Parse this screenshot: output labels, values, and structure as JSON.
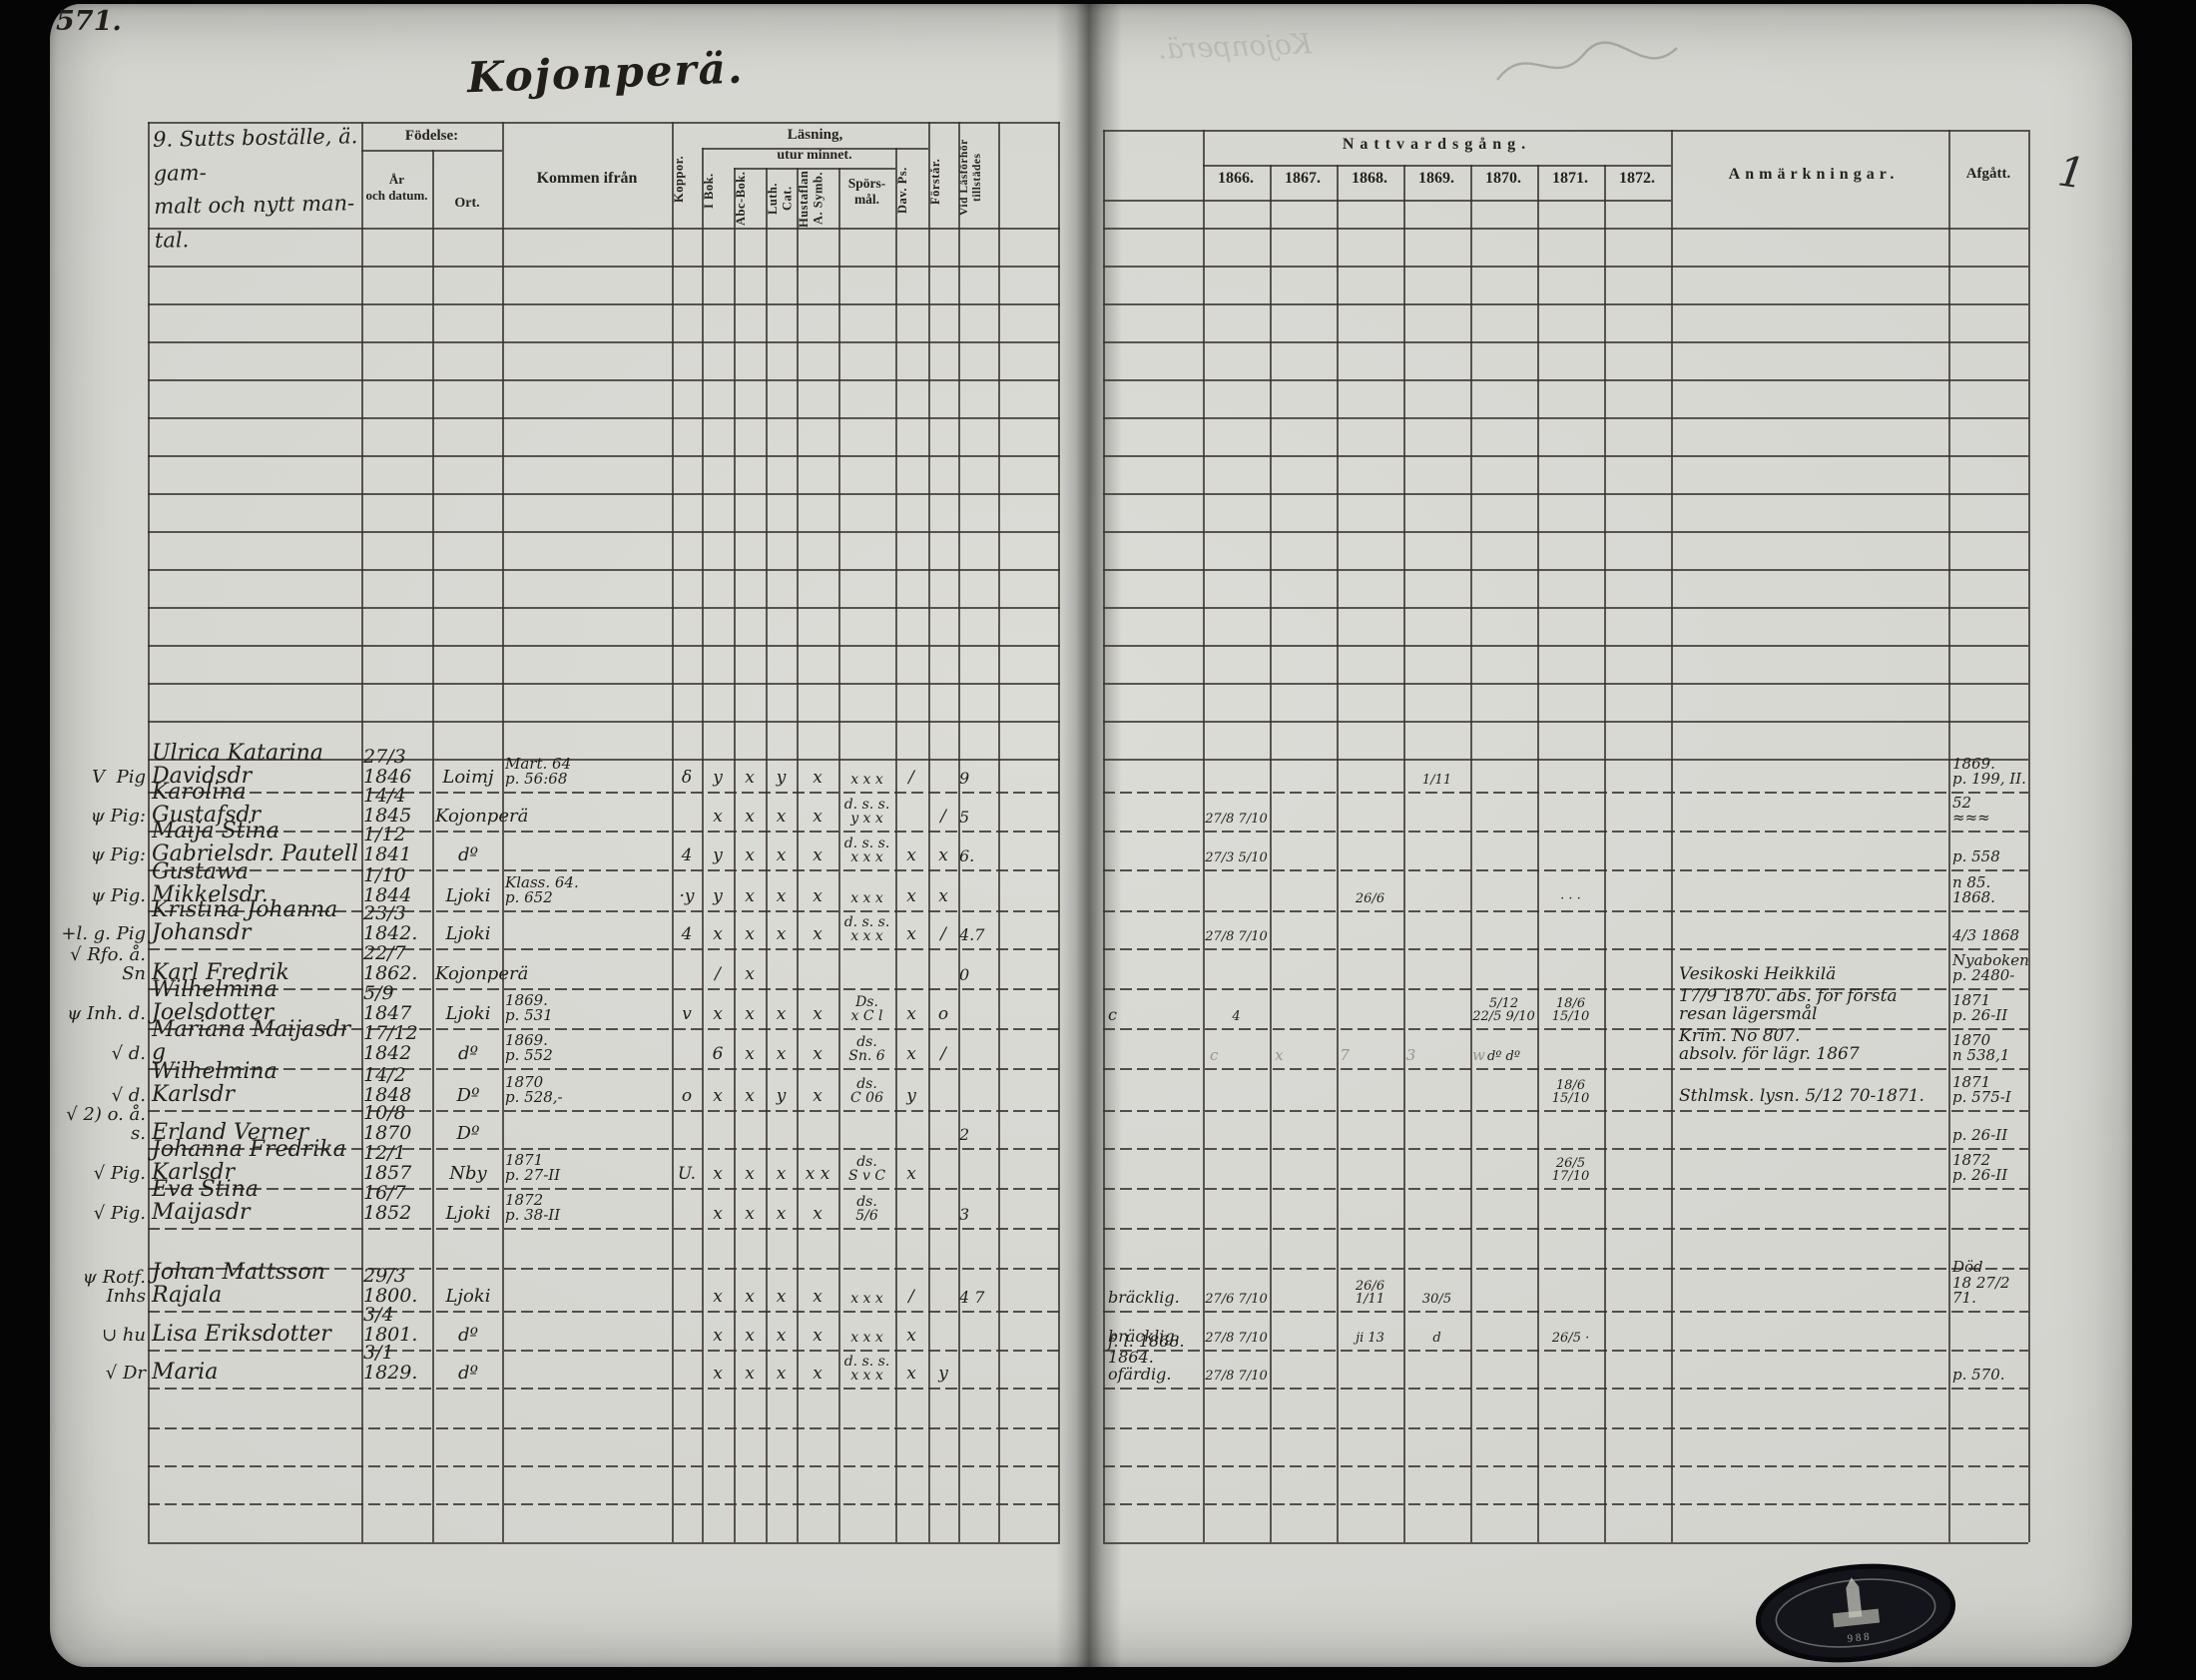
{
  "page_label": "571.",
  "title": "Kojonperä.",
  "left_header": {
    "name_note": "9. Sutts boställe, ä. gam-\nmalt och nytt man-\ntal.",
    "fodelse": "Födelse:",
    "ar_och_datum": "År\noch datum.",
    "ort": "Ort.",
    "kommen_ifran": "Kommen ifrån",
    "koppor": "Koppor.",
    "lasning": "Läsning,",
    "utur_minnet": "utur minnet.",
    "i_bok": "I Bok.",
    "abc_bok": "Abc-Bok.",
    "luth_cat": "Luth. Cat.",
    "hustaflan_symb": "Hustaflan\nA. Symb.",
    "sporsmal": "Spörs-\nmål.",
    "dav_ps": "Dav. Ps.",
    "forstar": "Förstår.",
    "vid_lasforhor": "Vid Läsförhör\ntillstädes"
  },
  "right_header": {
    "nattvardsgang": "Nattvardsgång.",
    "years": [
      "1866.",
      "1867.",
      "1868.",
      "1869.",
      "1870.",
      "1871.",
      "1872."
    ],
    "anmarkningar": "Anmärkningar.",
    "afgatt": "Afgått.",
    "margin_mark": "1"
  },
  "rows": [
    {
      "prefix": "V  Pig",
      "name": "Ulrica Katarina Davidsdr",
      "date": "27/3 1846",
      "ort": "Loimj",
      "kommen": "Mart. 64\np. 56:68",
      "koppor": "δ",
      "ibok": "y",
      "abc": "x",
      "luth": "y",
      "hust": "x",
      "spors": "x x x",
      "dav": "/",
      "vid": "9",
      "y1869": "1/11",
      "afgatt": "1869.\np. 199, II."
    },
    {
      "prefix": "ψ Pig:",
      "name": "Karolina Gustafsdr",
      "date": "14/4 1845",
      "ort": "Kojonperä",
      "ibok": "x",
      "abc": "x",
      "luth": "x",
      "hust": "x",
      "spors": "d. s. s.\ny x x",
      "forst": "/",
      "vid": "5",
      "y1866": "27/8 7/10",
      "afgatt": "52\n≈≈≈"
    },
    {
      "prefix": "ψ Pig:",
      "name": "Maija Stina Gabrielsdr. Pautell",
      "date": "1/12 1841",
      "ort": "dº",
      "koppor": "4",
      "ibok": "y",
      "abc": "x",
      "luth": "x",
      "hust": "x",
      "spors": "d. s. s.\nx x x",
      "dav": "x",
      "forst": "x",
      "vid": "6.",
      "y1866": "27/3 5/10",
      "afgatt": "p. 558"
    },
    {
      "prefix": "ψ Pig.",
      "name": "Gustawa Mikkelsdr.",
      "date": "1/10 1844",
      "ort": "Ljoki",
      "kommen": "Klass. 64.\np. 652",
      "koppor": "·y",
      "ibok": "y",
      "abc": "x",
      "luth": "x",
      "hust": "x",
      "spors": "x x x",
      "dav": "x",
      "forst": "x",
      "y1868": "26/6",
      "y1871": "· · ·",
      "afgatt": "n 85.\n1868."
    },
    {
      "prefix": "+l. g. Pig",
      "name": "Kristina Johanna Johansdr",
      "date": "23/3 1842.",
      "ort": "Ljoki",
      "koppor": "4",
      "ibok": "x",
      "abc": "x",
      "luth": "x",
      "hust": "x",
      "spors": "d. s. s.\nx x x",
      "dav": "x",
      "forst": "/",
      "vid": "4.7",
      "y1866": "27/8 7/10",
      "afgatt": "4/3 1868"
    },
    {
      "prefix": "√ Rfo. å. Sn",
      "name": "Karl Fredrik",
      "date": "22/7 1862.",
      "ort": "Kojonperä",
      "ibok": "/",
      "abc": "x",
      "vid": "0",
      "anm": "Vesikoski Heikkilä",
      "afgatt": "Nyaboken\np. 2480-"
    },
    {
      "prefix": "ψ Inh. d.",
      "name": "Wilhelmina Joelsdotter",
      "date": "5/9 1847",
      "ort": "Ljoki",
      "kommen": "1869.\np. 531",
      "koppor": "v",
      "ibok": "x",
      "abc": "x",
      "luth": "x",
      "hust": "x",
      "spors": "Ds.\nx C l",
      "dav": "x",
      "forst": "o",
      "note": "c",
      "y1866": "4",
      "y1870": "5/12\n22/5 9/10",
      "y1871": "18/6 15/10",
      "anm": "17/9 1870. abs. för första resan lägersmål",
      "afgatt": "1871\np. 26-II"
    },
    {
      "prefix": "√ d.",
      "name": "Mariana Maijasdr   g",
      "date": "17/12 1842",
      "ort": "dº",
      "kommen": "1869.\np. 552",
      "ibok": "6",
      "abc": "x",
      "luth": "x",
      "hust": "x",
      "spors": "ds.\nSn. 6",
      "dav": "x",
      "forst": "/",
      "pencil": "c x 7 3 w",
      "y1870": "dº dº",
      "anm": "Krim. No 807.\nabsolv. för lägr. 1867",
      "afgatt": "1870\nn 538,1"
    },
    {
      "prefix": "√ d.",
      "name": "Wilhelmina Karlsdr",
      "date": "14/2 1848",
      "ort": "Dº",
      "kommen": "1870\np. 528,-",
      "koppor": "o",
      "ibok": "x",
      "abc": "x",
      "luth": "y",
      "hust": "x",
      "spors": "ds.\nC 06",
      "dav": "y",
      "y1871": "18/6 15/10",
      "anm": "Sthlmsk. lysn. 5/12 70-1871.",
      "afgatt": "1871\np. 575-I"
    },
    {
      "prefix": "√ 2) o. å. s.",
      "name": "Erland Verner",
      "date": "10/8 1870",
      "ort": "Dº",
      "vid": "2",
      "afgatt": "p. 26-II"
    },
    {
      "prefix": "√ Pig.",
      "name": "Johanna Fredrika Karlsdr",
      "date": "12/1 1857",
      "ort": "Nby",
      "kommen": "1871\np. 27-II",
      "koppor": "U.",
      "ibok": "x",
      "abc": "x",
      "luth": "x",
      "hust": "x x",
      "spors": "ds.\nS v C",
      "dav": "x",
      "y1871": "26/5 17/10",
      "afgatt": "1872\np. 26-II"
    },
    {
      "prefix": "√ Pig.",
      "name": "Eva Stina Maijasdr",
      "date": "16/7 1852",
      "ort": "Ljoki",
      "kommen": "1872\np. 38-II",
      "ibok": "x",
      "abc": "x",
      "luth": "x",
      "hust": "x",
      "spors": "ds.\n5/6",
      "vid": "3"
    },
    {
      "prefix": "ψ Rotf. Inhs",
      "name": "Johan Mattsson Rajala",
      "date": "29/3 1800.",
      "ort": "Ljoki",
      "ibok": "x",
      "abc": "x",
      "luth": "x",
      "hust": "x",
      "spors": "x x x",
      "dav": "/",
      "vid": "4 7",
      "note": "bräcklig.",
      "y1866": "27/6 7/10",
      "y1868": "26/6  1/11",
      "y1869": "30/5",
      "afgatt": "Död\n18 27/2 71."
    },
    {
      "prefix": "∪ hu",
      "name": "Lisa Eriksdotter",
      "date": "3/4 1801.",
      "ort": "dº",
      "ibok": "x",
      "abc": "x",
      "luth": "x",
      "hust": "x",
      "spors": "x x x",
      "dav": "x",
      "note": "bräcklig.",
      "y1866": "27/8 7/10",
      "y1868": "ji 13",
      "y1869": "d",
      "y1871": "26/5 ·"
    },
    {
      "prefix": "√ Dr",
      "name": "Maria",
      "date": "3/1 1829.",
      "ort": "dº",
      "ibok": "x",
      "abc": "x",
      "luth": "x",
      "hust": "x",
      "spors": "d. s. s.\nx x x",
      "dav": "x",
      "forst": "y",
      "note": "f. l. 1868. 1864.\nofärdig.",
      "y1866": "27/8 7/10",
      "afgatt": "p. 570."
    }
  ],
  "stamp": {
    "label": "archive-seal",
    "digits": "9 8 8"
  }
}
